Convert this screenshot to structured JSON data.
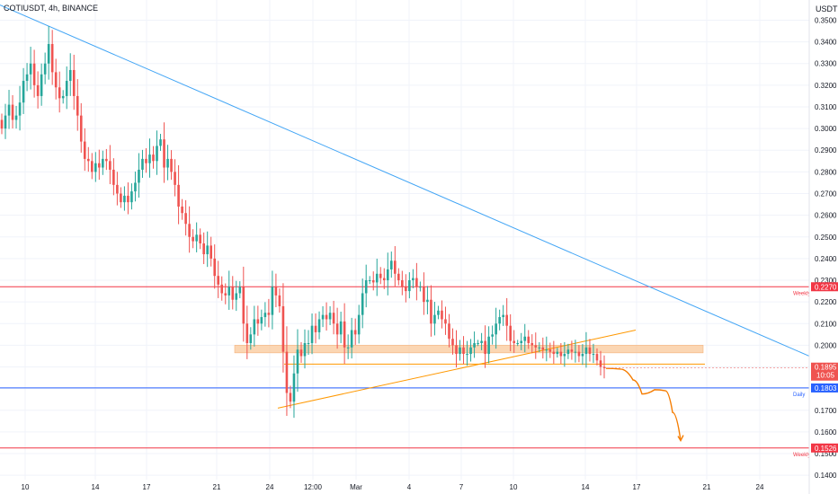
{
  "header": {
    "title": "COTIUSDT, 4h, BINANCE",
    "currency": "USDT"
  },
  "colors": {
    "up": "#26a69a",
    "down": "#ef5350",
    "trendline": "#42a5f5",
    "support": "#ff9800",
    "zone": "#f9c89a",
    "weekly": "#f23645",
    "daily": "#2962ff",
    "price_tag": "#ef5350",
    "projection": "#f57c00"
  },
  "chart_data": {
    "type": "candlestick",
    "yscale": "linear",
    "ylim": [
      0.138,
      0.356
    ],
    "y_ticks": [
      "0.3500",
      "0.3400",
      "0.3300",
      "0.3200",
      "0.3100",
      "0.3000",
      "0.2900",
      "0.2800",
      "0.2700",
      "0.2600",
      "0.2500",
      "0.2400",
      "0.2300",
      "0.2200",
      "0.2100",
      "0.2000",
      "0.1900",
      "0.1800",
      "0.1700",
      "0.1600",
      "0.1500",
      "0.1400"
    ],
    "x_ticks": [
      "10",
      "14",
      "17",
      "21",
      "24",
      "12:00",
      "Mar",
      "4",
      "7",
      "10",
      "14",
      "17",
      "21",
      "24"
    ],
    "current_price": {
      "value": 0.1895,
      "label": "0.1895",
      "countdown": "10:05"
    },
    "levels": [
      {
        "value": 0.227,
        "label": "0.2270",
        "tag": "Weekly",
        "kind": "weekly"
      },
      {
        "value": 0.1803,
        "label": "0.1803",
        "tag": "Daily",
        "kind": "daily"
      },
      {
        "value": 0.1526,
        "label": "0.1526",
        "tag": "Weekly",
        "kind": "weekly"
      }
    ],
    "zone": {
      "from": 0.1965,
      "to": 0.2
    },
    "support_level": 0.1913,
    "trendline": {
      "start": 0.357,
      "end": 0.195
    },
    "rising_line": {
      "start": 0.171,
      "end": 0.207
    },
    "projection": [
      0.1893,
      0.189,
      0.184,
      0.1775,
      0.1795,
      0.179,
      0.169,
      0.156
    ],
    "closes": [
      0.3,
      0.306,
      0.311,
      0.304,
      0.306,
      0.312,
      0.322,
      0.325,
      0.33,
      0.32,
      0.315,
      0.325,
      0.33,
      0.339,
      0.326,
      0.319,
      0.314,
      0.315,
      0.322,
      0.327,
      0.315,
      0.306,
      0.294,
      0.286,
      0.285,
      0.28,
      0.284,
      0.282,
      0.286,
      0.285,
      0.281,
      0.274,
      0.27,
      0.266,
      0.269,
      0.266,
      0.271,
      0.275,
      0.281,
      0.286,
      0.284,
      0.288,
      0.285,
      0.292,
      0.295,
      0.282,
      0.286,
      0.28,
      0.274,
      0.264,
      0.261,
      0.256,
      0.25,
      0.248,
      0.251,
      0.247,
      0.242,
      0.246,
      0.24,
      0.232,
      0.228,
      0.224,
      0.223,
      0.227,
      0.221,
      0.224,
      0.227,
      0.21,
      0.201,
      0.205,
      0.212,
      0.21,
      0.213,
      0.215,
      0.214,
      0.227,
      0.223,
      0.218,
      0.197,
      0.178,
      0.174,
      0.187,
      0.198,
      0.195,
      0.201,
      0.201,
      0.209,
      0.206,
      0.212,
      0.214,
      0.212,
      0.215,
      0.21,
      0.205,
      0.211,
      0.199,
      0.199,
      0.207,
      0.205,
      0.214,
      0.224,
      0.23,
      0.23,
      0.229,
      0.233,
      0.231,
      0.23,
      0.235,
      0.239,
      0.233,
      0.23,
      0.227,
      0.225,
      0.23,
      0.231,
      0.227,
      0.227,
      0.22,
      0.221,
      0.21,
      0.214,
      0.216,
      0.212,
      0.21,
      0.203,
      0.2,
      0.196,
      0.199,
      0.196,
      0.196,
      0.199,
      0.201,
      0.201,
      0.202,
      0.196,
      0.204,
      0.205,
      0.21,
      0.213,
      0.214,
      0.209,
      0.202,
      0.201,
      0.201,
      0.202,
      0.204,
      0.201,
      0.2,
      0.199,
      0.199,
      0.198,
      0.198,
      0.197,
      0.196,
      0.197,
      0.195,
      0.196,
      0.198,
      0.197,
      0.197,
      0.195,
      0.196,
      0.199,
      0.196,
      0.196,
      0.193,
      0.19,
      0.1895
    ]
  }
}
